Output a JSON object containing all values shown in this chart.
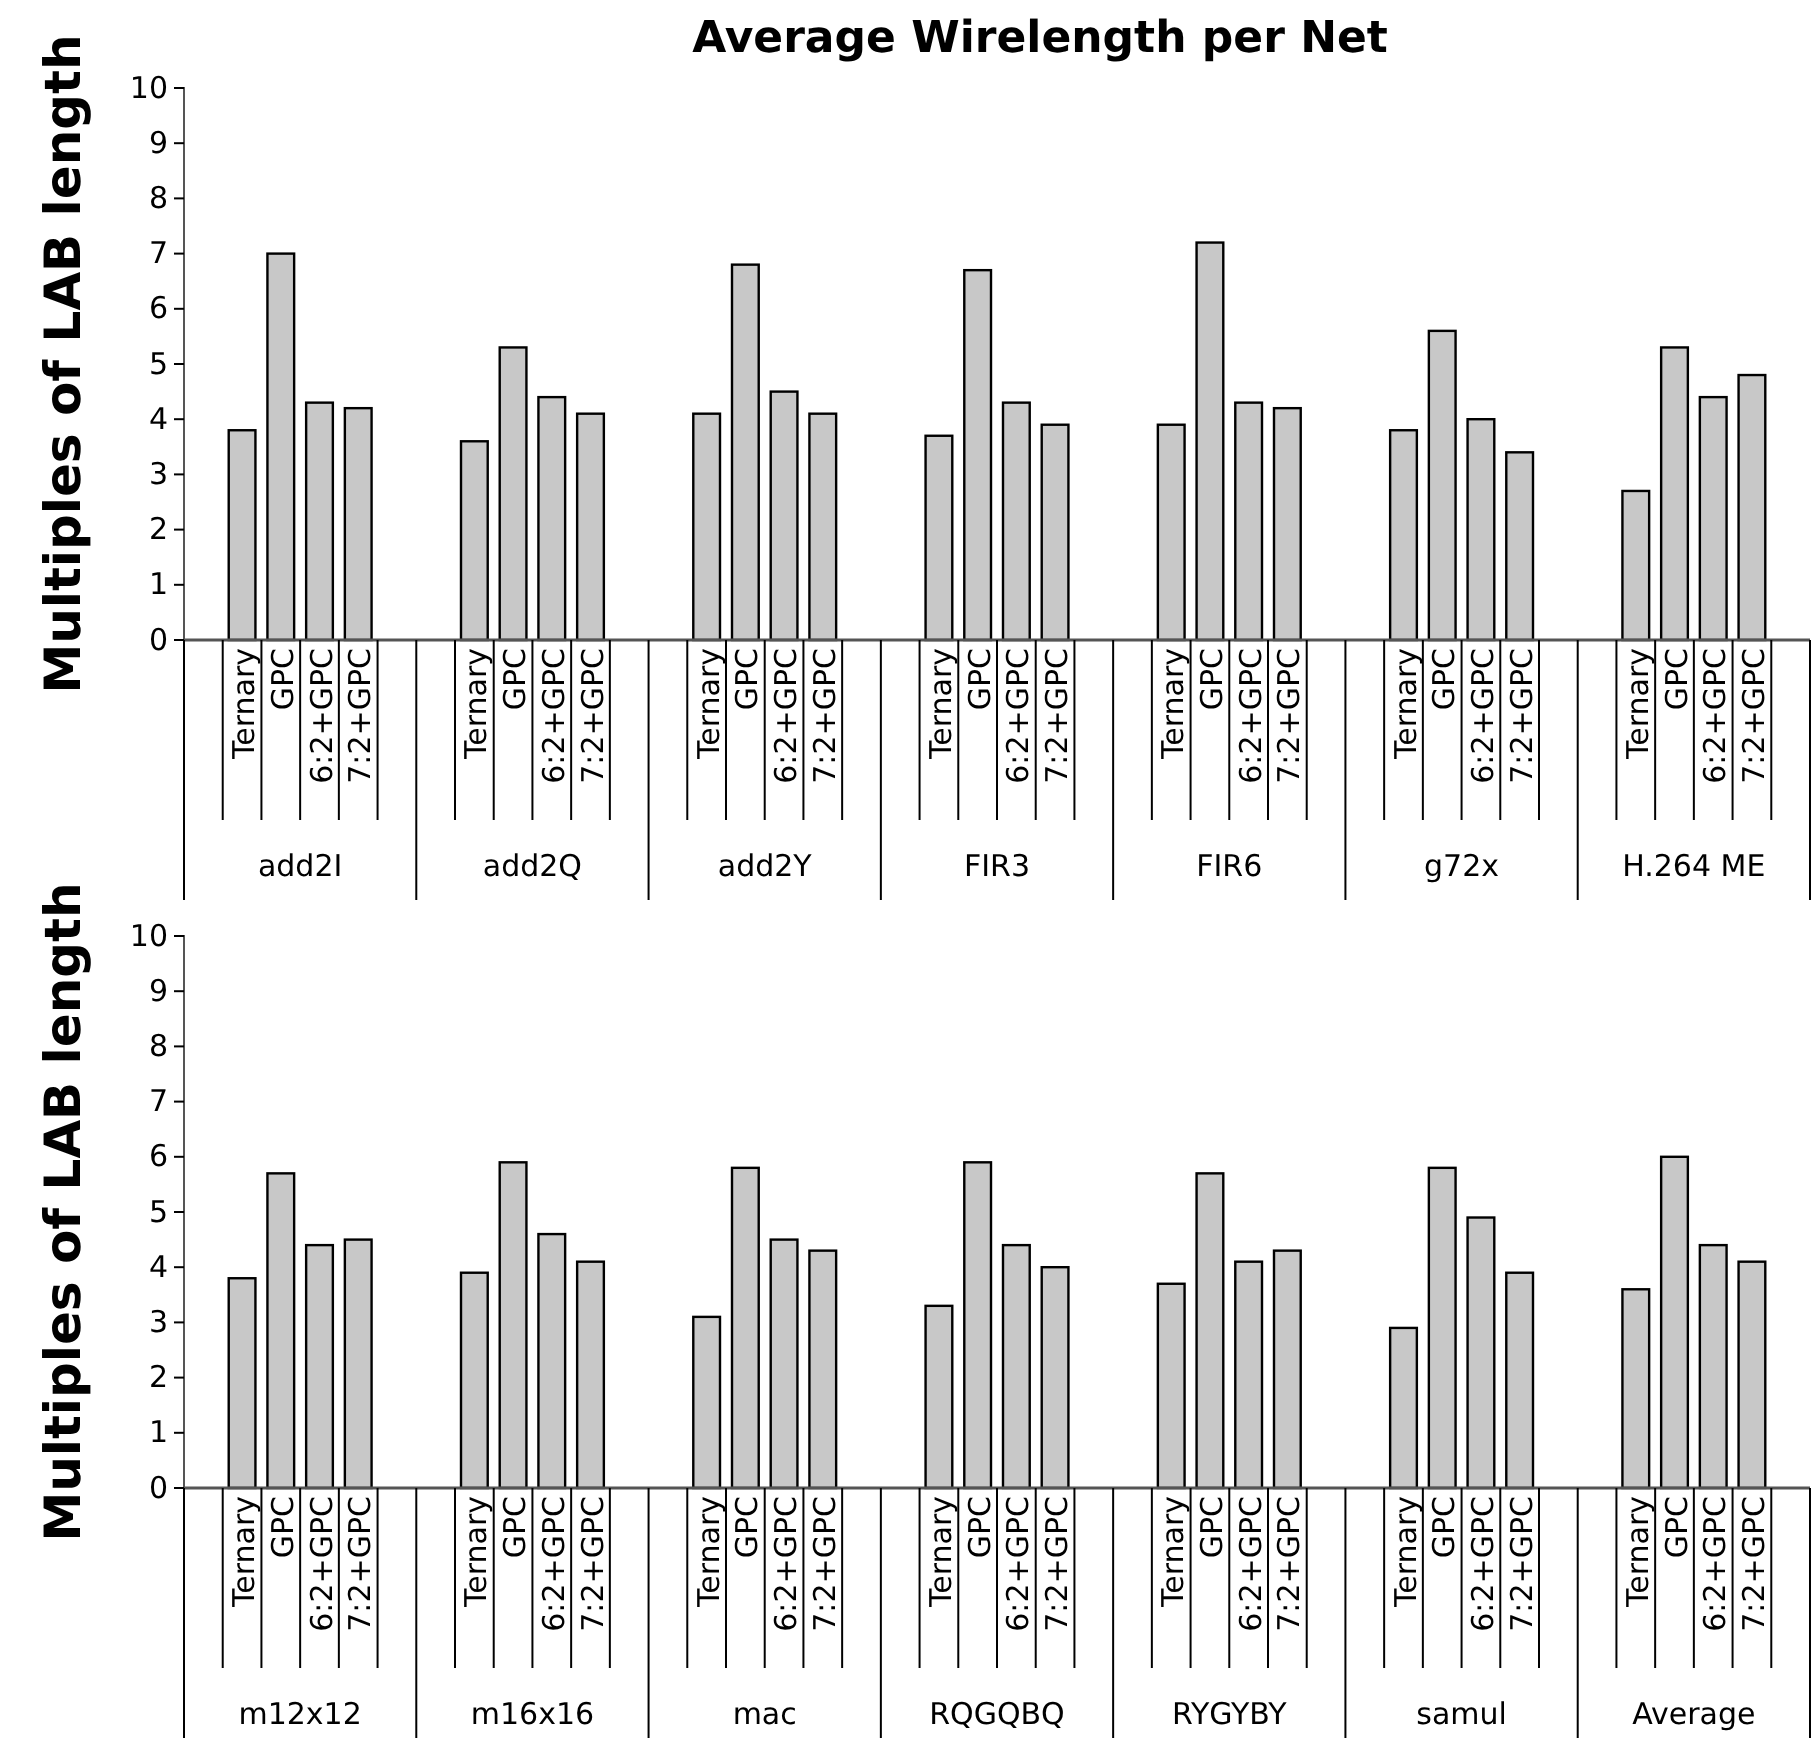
{
  "chart_data": [
    {
      "type": "bar",
      "title": "Average Wirelength per Net",
      "ylabel": "Multiples of LAB length",
      "ylim": [
        0,
        10
      ],
      "yticks": [
        0,
        1,
        2,
        3,
        4,
        5,
        6,
        7,
        8,
        9,
        10
      ],
      "grid": false,
      "color": "#c8c8c8",
      "categories": [
        null,
        "Ternary",
        "GPC",
        "6:2+GPC",
        "7:2+GPC",
        null,
        null,
        "Ternary",
        "GPC",
        "6:2+GPC",
        "7:2+GPC",
        null,
        null,
        "Ternary",
        "GPC",
        "6:2+GPC",
        "7:2+GPC",
        null,
        null,
        "Ternary",
        "GPC",
        "6:2+GPC",
        "7:2+GPC",
        null,
        null,
        "Ternary",
        "GPC",
        "6:2+GPC",
        "7:2+GPC",
        null,
        null,
        "Ternary",
        "GPC",
        "6:2+GPC",
        "7:2+GPC",
        null,
        null,
        "Ternary",
        "GPC",
        "6:2+GPC",
        "7:2+GPC",
        null
      ],
      "values": [
        null,
        3.8,
        7.0,
        4.3,
        4.2,
        null,
        null,
        3.6,
        5.3,
        4.4,
        4.1,
        null,
        null,
        4.1,
        6.8,
        4.5,
        4.1,
        null,
        null,
        3.7,
        6.7,
        4.3,
        3.9,
        null,
        null,
        3.9,
        7.2,
        4.3,
        4.2,
        null,
        null,
        3.8,
        5.6,
        4.0,
        3.4,
        null,
        null,
        2.7,
        5.3,
        4.4,
        4.8,
        null
      ],
      "annotations": [
        "add2I",
        "add2Q",
        "add2Y",
        "FIR3",
        "FIR6",
        "g72x",
        "H.264 ME"
      ]
    },
    {
      "type": "bar",
      "ylabel": "Multiples of LAB length",
      "ylim": [
        0,
        10
      ],
      "yticks": [
        0,
        1,
        2,
        3,
        4,
        5,
        6,
        7,
        8,
        9,
        10
      ],
      "grid": false,
      "color": "#c8c8c8",
      "categories": [
        null,
        "Ternary",
        "GPC",
        "6:2+GPC",
        "7:2+GPC",
        null,
        null,
        "Ternary",
        "GPC",
        "6:2+GPC",
        "7:2+GPC",
        null,
        null,
        "Ternary",
        "GPC",
        "6:2+GPC",
        "7:2+GPC",
        null,
        null,
        "Ternary",
        "GPC",
        "6:2+GPC",
        "7:2+GPC",
        null,
        null,
        "Ternary",
        "GPC",
        "6:2+GPC",
        "7:2+GPC",
        null,
        null,
        "Ternary",
        "GPC",
        "6:2+GPC",
        "7:2+GPC",
        null,
        null,
        "Ternary",
        "GPC",
        "6:2+GPC",
        "7:2+GPC",
        null
      ],
      "values": [
        null,
        3.8,
        5.7,
        4.4,
        4.5,
        null,
        null,
        3.9,
        5.9,
        4.6,
        4.1,
        null,
        null,
        3.1,
        5.8,
        4.5,
        4.3,
        null,
        null,
        3.3,
        5.9,
        4.4,
        4.0,
        null,
        null,
        3.7,
        5.7,
        4.1,
        4.3,
        null,
        null,
        2.9,
        5.8,
        4.9,
        3.9,
        null,
        null,
        3.6,
        6.0,
        4.4,
        4.1,
        null
      ],
      "annotations": [
        "m12x12",
        "m16x16",
        "mac",
        "RQGQBQ",
        "RYGYBY",
        "samul",
        "Average"
      ]
    }
  ]
}
